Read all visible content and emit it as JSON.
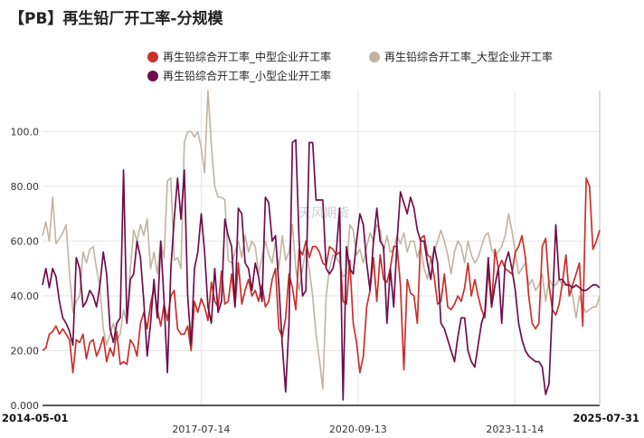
{
  "chart_data": {
    "type": "line",
    "title": "【PB】再生铅厂开工率-分规模",
    "watermark": "天风期货",
    "x_labels": [
      "2014-05-01",
      "2017-07-14",
      "2020-09-13",
      "2023-11-14",
      "2025-07-31"
    ],
    "x_range": [
      "2014-05-01",
      "2025-07-31"
    ],
    "ylim": [
      0,
      115
    ],
    "y_ticks": [
      "0.000",
      "20.00",
      "40.00",
      "60.00",
      "80.00",
      "100.0"
    ],
    "grid": true,
    "legend_position": "top",
    "series": [
      {
        "name": "再生铅综合开工率_中型企业开工率",
        "color": "#c9302c",
        "values": [
          20,
          21,
          26,
          27,
          29,
          26,
          28,
          26,
          24,
          12,
          24,
          23,
          26,
          17,
          23,
          24,
          18,
          21,
          25,
          16,
          21,
          18,
          27,
          15,
          16,
          15,
          24,
          22,
          18,
          30,
          34,
          28,
          37,
          43,
          35,
          29,
          37,
          31,
          40,
          42,
          28,
          26,
          26,
          29,
          20,
          38,
          34,
          39,
          36,
          31,
          45,
          38,
          36,
          49,
          37,
          38,
          48,
          36,
          52,
          37,
          42,
          46,
          40,
          42,
          38,
          44,
          36,
          38,
          46,
          50,
          28,
          25,
          32,
          48,
          43,
          35,
          57,
          55,
          60,
          54,
          58,
          58,
          56,
          52,
          51,
          58,
          57,
          55,
          56,
          38,
          37,
          53,
          30,
          23,
          12,
          18,
          36,
          42,
          54,
          38,
          55,
          46,
          45,
          50,
          58,
          58,
          44,
          13,
          46,
          41,
          40,
          30,
          61,
          62,
          55,
          54,
          47,
          37,
          38,
          48,
          36,
          35,
          37,
          40,
          38,
          43,
          52,
          40,
          46,
          40,
          35,
          32,
          50,
          36,
          57,
          50,
          53,
          50,
          49,
          48,
          56,
          58,
          62,
          54,
          40,
          30,
          28,
          30,
          58,
          61,
          44,
          35,
          33,
          37,
          45,
          55,
          40,
          44,
          48,
          52,
          29,
          83,
          80,
          57,
          60,
          64
        ]
      },
      {
        "name": "再生铅综合开工率_大型企业开工率",
        "color": "#c2b3a2",
        "values": [
          62,
          67,
          60,
          76,
          59,
          61,
          63,
          66,
          48,
          34,
          38,
          40,
          56,
          52,
          57,
          58,
          50,
          43,
          28,
          22,
          26,
          30,
          24,
          26,
          35,
          30,
          50,
          64,
          60,
          66,
          62,
          68,
          50,
          56,
          48,
          60,
          54,
          82,
          83,
          53,
          54,
          50,
          96,
          100,
          100,
          98,
          100,
          94,
          85,
          116,
          95,
          80,
          76,
          76,
          75,
          53,
          52,
          56,
          60,
          54,
          62,
          56,
          60,
          58,
          48,
          54,
          60,
          55,
          52,
          60,
          50,
          62,
          53,
          56,
          66,
          50,
          42,
          50,
          57,
          50,
          40,
          26,
          17,
          6,
          40,
          50,
          55,
          54,
          52,
          47,
          48,
          66,
          64,
          55,
          57,
          52,
          58,
          63,
          60,
          66,
          64,
          56,
          62,
          56,
          57,
          62,
          59,
          63,
          56,
          60,
          60,
          54,
          58,
          50,
          46,
          54,
          56,
          60,
          64,
          60,
          55,
          48,
          56,
          60,
          58,
          52,
          60,
          55,
          52,
          54,
          58,
          62,
          63,
          57,
          55,
          56,
          58,
          62,
          70,
          64,
          56,
          48,
          50,
          52,
          44,
          46,
          42,
          44,
          48,
          38,
          46,
          44,
          44,
          46,
          44,
          44,
          45,
          40,
          32,
          40,
          36,
          34,
          35,
          36,
          36,
          40
        ]
      },
      {
        "name": "再生铅综合开工率_小型企业开工率",
        "color": "#6e0f4b",
        "values": [
          44,
          50,
          43,
          50,
          47,
          38,
          32,
          30,
          27,
          22,
          54,
          50,
          36,
          38,
          42,
          40,
          36,
          44,
          56,
          48,
          28,
          23,
          30,
          32,
          86,
          30,
          46,
          48,
          60,
          54,
          38,
          18,
          30,
          46,
          32,
          60,
          38,
          12,
          50,
          68,
          83,
          68,
          86,
          40,
          22,
          50,
          56,
          70,
          56,
          36,
          30,
          50,
          34,
          38,
          68,
          62,
          58,
          36,
          72,
          70,
          52,
          50,
          42,
          52,
          47,
          38,
          76,
          74,
          60,
          62,
          44,
          22,
          5,
          30,
          96,
          97,
          60,
          40,
          42,
          96,
          96,
          75,
          75,
          75,
          50,
          48,
          50,
          56,
          72,
          2,
          58,
          50,
          48,
          60,
          70,
          66,
          52,
          42,
          60,
          72,
          60,
          58,
          30,
          50,
          36,
          60,
          78,
          74,
          70,
          76,
          72,
          64,
          60,
          60,
          52,
          46,
          58,
          52,
          30,
          28,
          24,
          20,
          16,
          25,
          32,
          32,
          20,
          16,
          14,
          22,
          30,
          34,
          54,
          36,
          44,
          50,
          30,
          52,
          56,
          50,
          42,
          30,
          24,
          20,
          18,
          17,
          16,
          16,
          14,
          4,
          8,
          36,
          66,
          46,
          46,
          44,
          44,
          43,
          44,
          43,
          42,
          42,
          43,
          44,
          44,
          43
        ]
      }
    ]
  }
}
